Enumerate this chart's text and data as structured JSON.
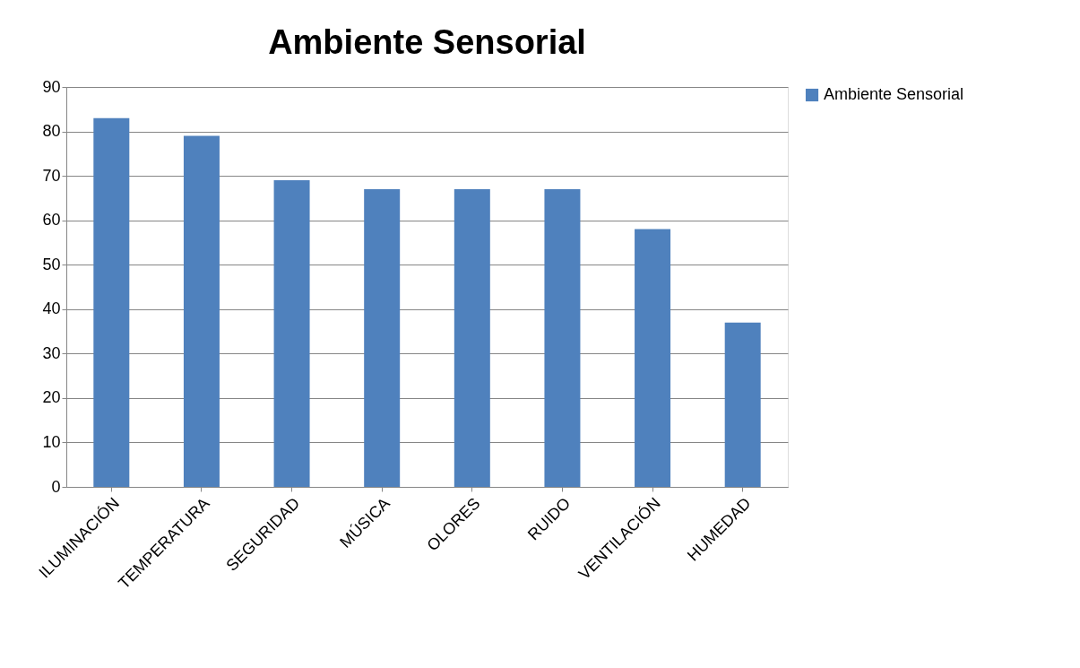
{
  "chart_data": {
    "type": "bar",
    "title": "Ambiente Sensorial",
    "categories": [
      "ILUMINACIÓN",
      "TEMPERATURA",
      "SEGURIDAD",
      "MÚSICA",
      "OLORES",
      "RUIDO",
      "VENTILACIÓN",
      "HUMEDAD"
    ],
    "series": [
      {
        "name": "Ambiente Sensorial",
        "color": "#4f81bd",
        "values": [
          83,
          79,
          69,
          67,
          67,
          67,
          58,
          37
        ]
      }
    ],
    "ylim": [
      0,
      90
    ],
    "yticks": [
      0,
      10,
      20,
      30,
      40,
      50,
      60,
      70,
      80,
      90
    ],
    "grid": "y",
    "legend": "right"
  }
}
